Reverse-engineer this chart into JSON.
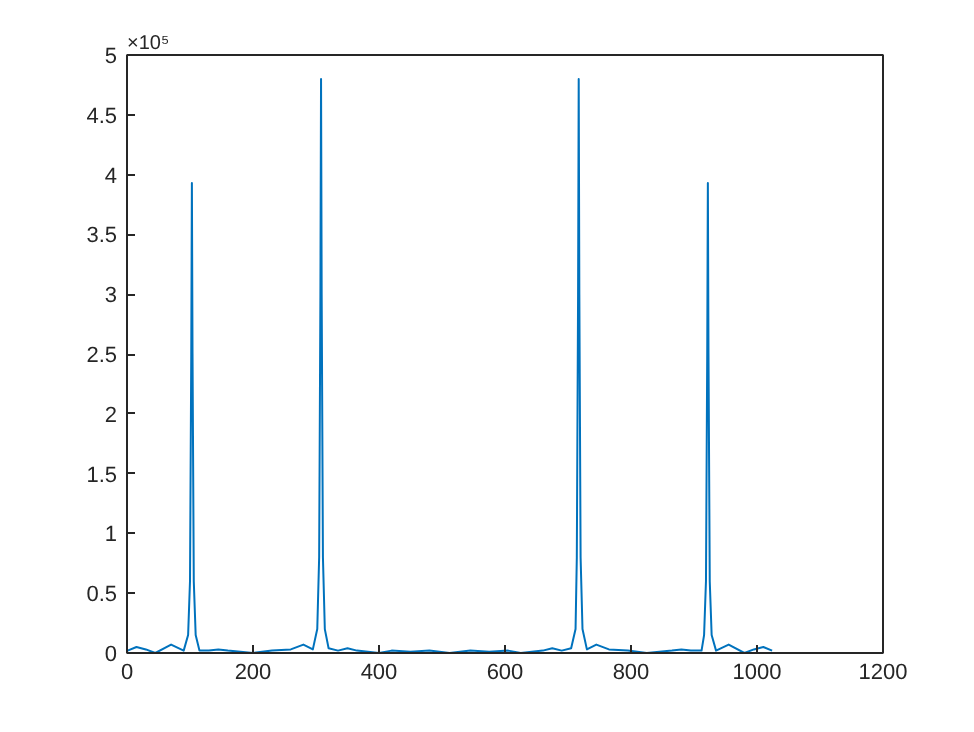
{
  "chart_data": {
    "type": "line",
    "x": [
      1,
      15,
      30,
      45,
      70,
      90,
      97,
      100,
      102,
      103,
      104,
      106,
      109,
      115,
      130,
      145,
      160,
      200,
      230,
      260,
      280,
      295,
      302,
      305,
      307,
      308,
      309,
      311,
      314,
      320,
      335,
      350,
      365,
      400,
      420,
      450,
      480,
      512,
      545,
      575,
      605,
      625,
      660,
      675,
      690,
      705,
      712,
      714,
      716,
      717,
      718,
      720,
      723,
      730,
      745,
      765,
      795,
      825,
      865,
      880,
      895,
      912,
      916,
      919,
      921,
      922,
      923,
      925,
      928,
      935,
      955,
      980,
      995,
      1010,
      1024
    ],
    "series": [
      {
        "color": "#0072bd",
        "values": [
          0.02,
          0.05,
          0.03,
          0.0,
          0.07,
          0.02,
          0.15,
          0.6,
          2.5,
          3.93,
          2.5,
          0.6,
          0.15,
          0.02,
          0.02,
          0.03,
          0.02,
          0.0,
          0.02,
          0.03,
          0.07,
          0.03,
          0.2,
          0.8,
          3.0,
          4.8,
          3.0,
          0.8,
          0.2,
          0.04,
          0.02,
          0.04,
          0.02,
          0.0,
          0.02,
          0.01,
          0.02,
          0.0,
          0.02,
          0.01,
          0.02,
          0.0,
          0.02,
          0.04,
          0.02,
          0.04,
          0.2,
          0.8,
          3.0,
          4.8,
          3.0,
          0.8,
          0.2,
          0.03,
          0.07,
          0.03,
          0.02,
          0.0,
          0.02,
          0.03,
          0.02,
          0.02,
          0.15,
          0.6,
          2.5,
          3.93,
          2.5,
          0.6,
          0.15,
          0.02,
          0.07,
          0.0,
          0.03,
          0.05,
          0.02
        ]
      }
    ],
    "xlim": [
      0,
      1200
    ],
    "xticks": [
      0,
      200,
      400,
      600,
      800,
      1000,
      1200
    ],
    "ylim": [
      0,
      5
    ],
    "yticks": [
      0,
      0.5,
      1,
      1.5,
      2,
      2.5,
      3,
      3.5,
      4,
      4.5,
      5
    ],
    "annotations": [
      "×10⁵"
    ],
    "grid": false,
    "marker": "none",
    "line_style": "solid"
  }
}
